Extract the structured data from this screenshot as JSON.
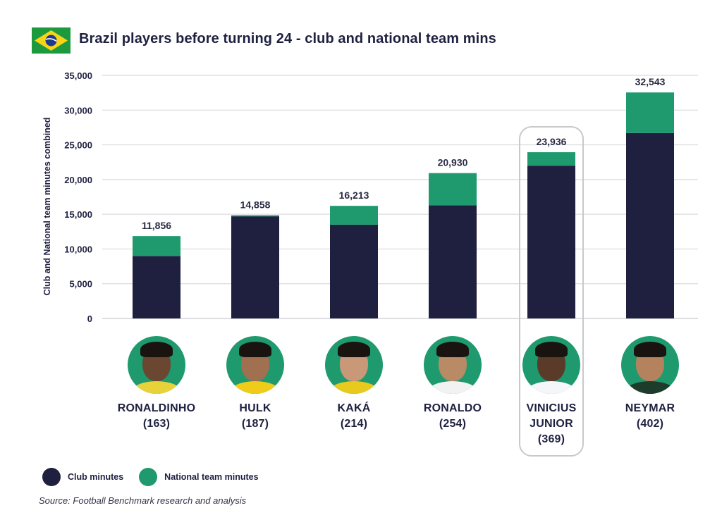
{
  "header": {
    "title": "Brazil players before turning 24 - club and national team mins"
  },
  "chart_data": {
    "type": "bar",
    "stacked": true,
    "title": "Brazil players before turning 24 - club and national team mins",
    "ylabel": "Club and National team minutes combined",
    "ylim": [
      0,
      35000
    ],
    "yticks": [
      "35,000",
      "30,000",
      "25,000",
      "20,000",
      "15,000",
      "10,000",
      "5,000",
      "0"
    ],
    "ytick_values": [
      35000,
      30000,
      25000,
      20000,
      15000,
      10000,
      5000,
      0
    ],
    "grid": true,
    "categories": [
      "RONALDINHO (163)",
      "HULK (187)",
      "KAKÁ (214)",
      "RONALDO (254)",
      "VINICIUS JUNIOR (369)",
      "NEYMAR (402)"
    ],
    "series": [
      {
        "name": "Club minutes",
        "color": "#1f2040",
        "values": [
          9000,
          14700,
          13500,
          16300,
          22000,
          26700
        ]
      },
      {
        "name": "National team minutes",
        "color": "#1e9a6e",
        "values": [
          2856,
          158,
          2713,
          4630,
          1936,
          5843
        ]
      }
    ],
    "totals": [
      "11,856",
      "14,858",
      "16,213",
      "20,930",
      "23,936",
      "32,543"
    ],
    "total_values": [
      11856,
      14858,
      16213,
      20930,
      23936,
      32543
    ],
    "highlighted_category": "VINICIUS JUNIOR (369)",
    "legend_position": "bottom-left"
  },
  "players": [
    {
      "name_lines": [
        "RONALDINHO",
        "(163)"
      ],
      "skin": "#6b4630",
      "shirt": "#e8d23a"
    },
    {
      "name_lines": [
        "HULK",
        "(187)"
      ],
      "skin": "#a07050",
      "shirt": "#f0cc1a"
    },
    {
      "name_lines": [
        "KAKÁ",
        "(214)"
      ],
      "skin": "#c99878",
      "shirt": "#e8c91e"
    },
    {
      "name_lines": [
        "RONALDO",
        "(254)"
      ],
      "skin": "#b88a66",
      "shirt": "#f2f2f2"
    },
    {
      "name_lines": [
        "VINICIUS",
        "JUNIOR",
        "(369)"
      ],
      "skin": "#5a3a28",
      "shirt": "#f4f6fa"
    },
    {
      "name_lines": [
        "NEYMAR",
        "(402)"
      ],
      "skin": "#b5825e",
      "shirt": "#1e3c2c"
    }
  ],
  "legend": [
    {
      "label": "Club minutes",
      "color": "#1f2040"
    },
    {
      "label": "National team minutes",
      "color": "#1e9a6e"
    }
  ],
  "source": "Source: Football Benchmark research and analysis"
}
